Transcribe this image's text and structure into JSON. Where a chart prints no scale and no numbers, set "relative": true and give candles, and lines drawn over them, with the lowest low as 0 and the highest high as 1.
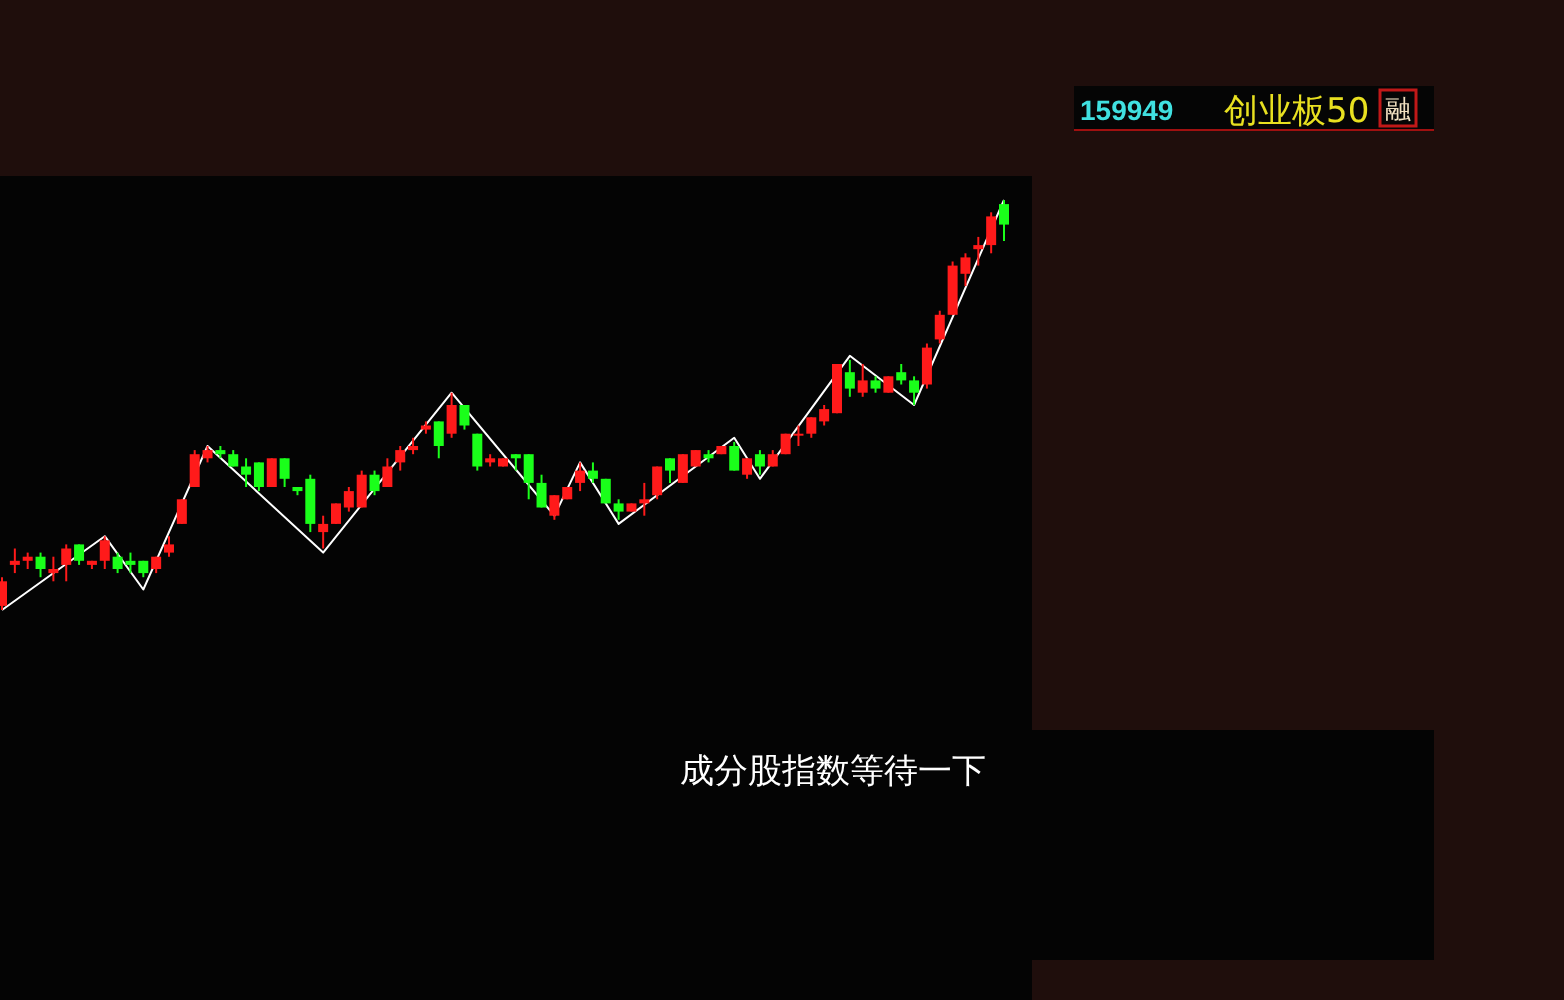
{
  "chart_data": {
    "type": "candlestick",
    "relative": true,
    "annotations": [
      "159949",
      "创业板50",
      "融",
      "成分股指数等待一下"
    ],
    "categories": [
      null,
      null,
      null,
      null,
      null,
      null,
      null,
      null,
      null,
      null,
      null,
      null,
      null,
      null,
      null,
      null,
      null,
      null,
      null,
      null,
      null,
      null,
      null,
      null,
      null,
      null,
      null,
      null,
      null,
      null,
      null,
      null,
      null,
      null,
      null,
      null,
      null,
      null,
      null,
      null,
      null,
      null,
      null,
      null,
      null,
      null,
      null,
      null,
      null,
      null,
      null,
      null,
      null,
      null,
      null,
      null,
      null,
      null,
      null,
      null,
      null,
      null,
      null,
      null,
      null,
      null,
      null,
      null,
      null,
      null,
      null,
      null,
      null,
      null,
      null,
      null,
      null,
      null,
      null
    ],
    "colors": [
      "#ff1a1a",
      "#ff1a1a",
      "#ff1a1a",
      "#1aff1a",
      "#ff1a1a",
      "#ff1a1a",
      "#1aff1a",
      "#ff1a1a",
      "#ff1a1a",
      "#1aff1a",
      "#1aff1a",
      "#1aff1a",
      "#ff1a1a",
      "#ff1a1a",
      "#ff1a1a",
      "#ff1a1a",
      "#ff1a1a",
      "#1aff1a",
      "#1aff1a",
      "#1aff1a",
      "#1aff1a",
      "#ff1a1a",
      "#1aff1a",
      "#1aff1a",
      "#1aff1a",
      "#ff1a1a",
      "#ff1a1a",
      "#ff1a1a",
      "#ff1a1a",
      "#1aff1a",
      "#ff1a1a",
      "#ff1a1a",
      "#ff1a1a",
      "#ff1a1a",
      "#1aff1a",
      "#ff1a1a",
      "#1aff1a",
      "#1aff1a",
      "#ff1a1a",
      "#ff1a1a",
      "#1aff1a",
      "#1aff1a",
      "#1aff1a",
      "#ff1a1a",
      "#ff1a1a",
      "#ff1a1a",
      "#1aff1a",
      "#1aff1a",
      "#1aff1a",
      "#ff1a1a",
      "#ff1a1a",
      "#ff1a1a",
      "#1aff1a",
      "#ff1a1a",
      "#ff1a1a",
      "#1aff1a",
      "#ff1a1a",
      "#1aff1a",
      "#ff1a1a",
      "#1aff1a",
      "#ff1a1a",
      "#ff1a1a",
      "#ff1a1a",
      "#ff1a1a",
      "#ff1a1a",
      "#ff1a1a",
      "#1aff1a",
      "#ff1a1a",
      "#1aff1a",
      "#ff1a1a",
      "#1aff1a",
      "#1aff1a",
      "#ff1a1a",
      "#ff1a1a",
      "#ff1a1a",
      "#ff1a1a",
      "#ff1a1a",
      "#ff1a1a",
      "#1aff1a"
    ],
    "ohlc": [
      [
        0.01,
        0.08,
        0,
        0.07
      ],
      [
        0.11,
        0.15,
        0.09,
        0.12
      ],
      [
        0.12,
        0.14,
        0.1,
        0.13
      ],
      [
        0.13,
        0.14,
        0.08,
        0.1
      ],
      [
        0.09,
        0.13,
        0.07,
        0.1
      ],
      [
        0.11,
        0.16,
        0.07,
        0.15
      ],
      [
        0.16,
        0.16,
        0.11,
        0.12
      ],
      [
        0.11,
        0.12,
        0.1,
        0.12
      ],
      [
        0.12,
        0.18,
        0.1,
        0.17
      ],
      [
        0.13,
        0.14,
        0.09,
        0.1
      ],
      [
        0.12,
        0.14,
        0.09,
        0.11
      ],
      [
        0.12,
        0.12,
        0.08,
        0.09
      ],
      [
        0.1,
        0.13,
        0.09,
        0.13
      ],
      [
        0.14,
        0.18,
        0.13,
        0.16
      ],
      [
        0.21,
        0.27,
        0.21,
        0.27
      ],
      [
        0.3,
        0.39,
        0.3,
        0.38
      ],
      [
        0.37,
        0.4,
        0.36,
        0.39
      ],
      [
        0.39,
        0.4,
        0.37,
        0.38
      ],
      [
        0.38,
        0.39,
        0.35,
        0.35
      ],
      [
        0.35,
        0.37,
        0.3,
        0.33
      ],
      [
        0.36,
        0.36,
        0.29,
        0.3
      ],
      [
        0.3,
        0.37,
        0.3,
        0.37
      ],
      [
        0.37,
        0.37,
        0.3,
        0.32
      ],
      [
        0.3,
        0.3,
        0.28,
        0.29
      ],
      [
        0.32,
        0.33,
        0.19,
        0.21
      ],
      [
        0.19,
        0.23,
        0.15,
        0.21
      ],
      [
        0.21,
        0.26,
        0.21,
        0.26
      ],
      [
        0.25,
        0.3,
        0.24,
        0.29
      ],
      [
        0.25,
        0.34,
        0.25,
        0.33
      ],
      [
        0.33,
        0.34,
        0.28,
        0.29
      ],
      [
        0.3,
        0.37,
        0.3,
        0.35
      ],
      [
        0.36,
        0.4,
        0.34,
        0.39
      ],
      [
        0.39,
        0.42,
        0.38,
        0.4
      ],
      [
        0.44,
        0.46,
        0.43,
        0.45
      ],
      [
        0.46,
        0.46,
        0.37,
        0.4
      ],
      [
        0.43,
        0.53,
        0.42,
        0.5
      ],
      [
        0.5,
        0.5,
        0.44,
        0.45
      ],
      [
        0.43,
        0.43,
        0.34,
        0.35
      ],
      [
        0.36,
        0.38,
        0.35,
        0.37
      ],
      [
        0.35,
        0.37,
        0.35,
        0.37
      ],
      [
        0.38,
        0.38,
        0.34,
        0.37
      ],
      [
        0.38,
        0.38,
        0.27,
        0.31
      ],
      [
        0.31,
        0.33,
        0.25,
        0.25
      ],
      [
        0.23,
        0.28,
        0.22,
        0.28
      ],
      [
        0.27,
        0.3,
        0.27,
        0.3
      ],
      [
        0.31,
        0.36,
        0.29,
        0.34
      ],
      [
        0.34,
        0.36,
        0.31,
        0.32
      ],
      [
        0.32,
        0.32,
        0.26,
        0.26
      ],
      [
        0.26,
        0.27,
        0.22,
        0.24
      ],
      [
        0.24,
        0.26,
        0.24,
        0.26
      ],
      [
        0.26,
        0.31,
        0.23,
        0.27
      ],
      [
        0.28,
        0.35,
        0.27,
        0.35
      ],
      [
        0.37,
        0.37,
        0.31,
        0.34
      ],
      [
        0.31,
        0.38,
        0.31,
        0.38
      ],
      [
        0.35,
        0.39,
        0.35,
        0.39
      ],
      [
        0.38,
        0.39,
        0.36,
        0.37
      ],
      [
        0.38,
        0.4,
        0.38,
        0.4
      ],
      [
        0.4,
        0.41,
        0.34,
        0.34
      ],
      [
        0.33,
        0.37,
        0.32,
        0.37
      ],
      [
        0.38,
        0.39,
        0.33,
        0.35
      ],
      [
        0.35,
        0.39,
        0.35,
        0.38
      ],
      [
        0.38,
        0.43,
        0.38,
        0.43
      ],
      [
        0.43,
        0.45,
        0.4,
        0.43
      ],
      [
        0.43,
        0.47,
        0.42,
        0.47
      ],
      [
        0.46,
        0.5,
        0.45,
        0.49
      ],
      [
        0.48,
        0.6,
        0.48,
        0.6
      ],
      [
        0.58,
        0.61,
        0.52,
        0.54
      ],
      [
        0.53,
        0.6,
        0.52,
        0.56
      ],
      [
        0.56,
        0.57,
        0.53,
        0.54
      ],
      [
        0.53,
        0.57,
        0.53,
        0.57
      ],
      [
        0.58,
        0.6,
        0.55,
        0.56
      ],
      [
        0.56,
        0.57,
        0.5,
        0.53
      ],
      [
        0.55,
        0.65,
        0.54,
        0.64
      ],
      [
        0.66,
        0.73,
        0.65,
        0.72
      ],
      [
        0.72,
        0.85,
        0.72,
        0.84
      ],
      [
        0.82,
        0.87,
        0.79,
        0.86
      ],
      [
        0.88,
        0.91,
        0.84,
        0.89
      ],
      [
        0.89,
        0.97,
        0.87,
        0.96
      ],
      [
        0.99,
        1,
        0.9,
        0.94
      ]
    ],
    "series": [
      {
        "type": "line",
        "color": "#ffffff",
        "values": [
          0,
          null,
          null,
          null,
          null,
          null,
          null,
          null,
          0.18,
          null,
          null,
          0.05,
          null,
          null,
          null,
          null,
          0.4,
          null,
          null,
          null,
          null,
          null,
          null,
          null,
          null,
          0.14,
          null,
          null,
          null,
          null,
          null,
          null,
          null,
          null,
          null,
          0.53,
          null,
          null,
          null,
          null,
          null,
          null,
          null,
          0.23,
          null,
          0.36,
          null,
          null,
          0.21,
          null,
          null,
          null,
          null,
          null,
          null,
          null,
          null,
          0.42,
          null,
          0.32,
          null,
          null,
          null,
          null,
          null,
          null,
          0.62,
          null,
          null,
          null,
          null,
          0.5,
          null,
          null,
          null,
          null,
          null,
          null,
          1
        ]
      }
    ]
  }
}
